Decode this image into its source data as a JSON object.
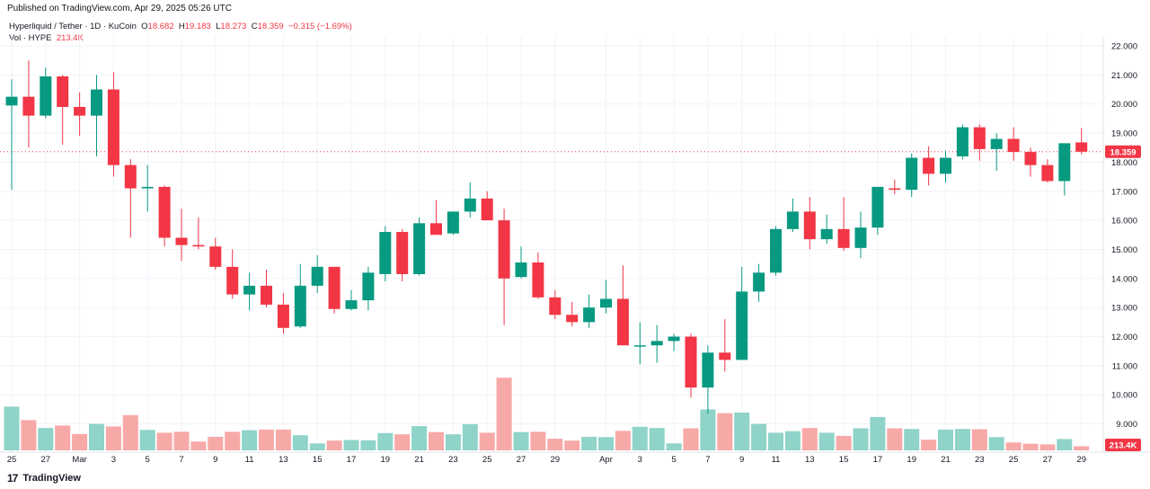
{
  "header": {
    "published": "Published on TradingView.com, Apr 29, 2025 05:26 UTC"
  },
  "legend": {
    "symbol": "Hyperliquid / Tether · 1D · KuCoin",
    "open_label": "O",
    "open": "18.682",
    "high_label": "H",
    "high": "19.183",
    "low_label": "L",
    "low": "18.273",
    "close_label": "C",
    "close": "18.359",
    "change": "−0.315 (−1.69%)",
    "vol_label": "Vol · HYPE",
    "vol_value": "213.4K"
  },
  "footer": {
    "brand": "TradingView",
    "logo_mark": "17"
  },
  "colors": {
    "up": "#089981",
    "down": "#f23645",
    "vol_up": "#8fd3c9",
    "vol_down": "#f7a9a7",
    "grid": "#f0f3fa",
    "text": "#131722"
  },
  "chart_data": {
    "type": "candlestick",
    "ylim": [
      8.0,
      22.5
    ],
    "y_ticks": [
      "9.000",
      "10.000",
      "11.000",
      "12.000",
      "13.000",
      "14.000",
      "15.000",
      "16.000",
      "17.000",
      "18.000",
      "19.000",
      "20.000",
      "21.000",
      "22.000"
    ],
    "last_price_label": "18.359",
    "last_volume_label": "213.4K",
    "x_tick_labels": [
      {
        "i": 0,
        "label": "25"
      },
      {
        "i": 2,
        "label": "27"
      },
      {
        "i": 4,
        "label": "Mar"
      },
      {
        "i": 6,
        "label": "3"
      },
      {
        "i": 8,
        "label": "5"
      },
      {
        "i": 10,
        "label": "7"
      },
      {
        "i": 12,
        "label": "9"
      },
      {
        "i": 14,
        "label": "11"
      },
      {
        "i": 16,
        "label": "13"
      },
      {
        "i": 18,
        "label": "15"
      },
      {
        "i": 20,
        "label": "17"
      },
      {
        "i": 22,
        "label": "19"
      },
      {
        "i": 24,
        "label": "21"
      },
      {
        "i": 26,
        "label": "23"
      },
      {
        "i": 28,
        "label": "25"
      },
      {
        "i": 30,
        "label": "27"
      },
      {
        "i": 32,
        "label": "29"
      },
      {
        "i": 35,
        "label": "Apr"
      },
      {
        "i": 37,
        "label": "3"
      },
      {
        "i": 39,
        "label": "5"
      },
      {
        "i": 41,
        "label": "7"
      },
      {
        "i": 43,
        "label": "9"
      },
      {
        "i": 45,
        "label": "11"
      },
      {
        "i": 47,
        "label": "13"
      },
      {
        "i": 49,
        "label": "15"
      },
      {
        "i": 51,
        "label": "17"
      },
      {
        "i": 53,
        "label": "19"
      },
      {
        "i": 55,
        "label": "21"
      },
      {
        "i": 57,
        "label": "23"
      },
      {
        "i": 59,
        "label": "25"
      },
      {
        "i": 61,
        "label": "27"
      },
      {
        "i": 63,
        "label": "29"
      }
    ],
    "candles": [
      {
        "o": 19.95,
        "h": 20.85,
        "l": 17.05,
        "c": 20.25
      },
      {
        "o": 20.25,
        "h": 21.5,
        "l": 18.5,
        "c": 19.6
      },
      {
        "o": 19.6,
        "h": 21.25,
        "l": 19.5,
        "c": 20.95
      },
      {
        "o": 20.95,
        "h": 21.0,
        "l": 18.6,
        "c": 19.9
      },
      {
        "o": 19.9,
        "h": 20.4,
        "l": 18.9,
        "c": 19.6
      },
      {
        "o": 19.6,
        "h": 21.0,
        "l": 18.2,
        "c": 20.5
      },
      {
        "o": 20.5,
        "h": 21.1,
        "l": 17.5,
        "c": 17.9
      },
      {
        "o": 17.9,
        "h": 18.1,
        "l": 15.4,
        "c": 17.1
      },
      {
        "o": 17.1,
        "h": 17.9,
        "l": 16.3,
        "c": 17.15
      },
      {
        "o": 17.15,
        "h": 17.2,
        "l": 15.1,
        "c": 15.4
      },
      {
        "o": 15.4,
        "h": 16.4,
        "l": 14.6,
        "c": 15.15
      },
      {
        "o": 15.15,
        "h": 16.1,
        "l": 15.0,
        "c": 15.1
      },
      {
        "o": 15.1,
        "h": 15.4,
        "l": 14.3,
        "c": 14.4
      },
      {
        "o": 14.4,
        "h": 15.0,
        "l": 13.3,
        "c": 13.45
      },
      {
        "o": 13.45,
        "h": 14.2,
        "l": 12.9,
        "c": 13.75
      },
      {
        "o": 13.75,
        "h": 14.3,
        "l": 13.0,
        "c": 13.1
      },
      {
        "o": 13.1,
        "h": 13.5,
        "l": 12.1,
        "c": 12.3
      },
      {
        "o": 12.35,
        "h": 14.5,
        "l": 12.3,
        "c": 13.75
      },
      {
        "o": 13.75,
        "h": 14.8,
        "l": 13.5,
        "c": 14.4
      },
      {
        "o": 14.4,
        "h": 14.4,
        "l": 12.8,
        "c": 12.95
      },
      {
        "o": 12.95,
        "h": 13.6,
        "l": 12.9,
        "c": 13.25
      },
      {
        "o": 13.25,
        "h": 14.4,
        "l": 12.9,
        "c": 14.2
      },
      {
        "o": 14.15,
        "h": 15.8,
        "l": 13.9,
        "c": 15.6
      },
      {
        "o": 15.6,
        "h": 15.7,
        "l": 13.9,
        "c": 14.15
      },
      {
        "o": 14.15,
        "h": 16.1,
        "l": 14.1,
        "c": 15.9
      },
      {
        "o": 15.9,
        "h": 16.7,
        "l": 15.5,
        "c": 15.5
      },
      {
        "o": 15.55,
        "h": 16.3,
        "l": 15.5,
        "c": 16.3
      },
      {
        "o": 16.3,
        "h": 17.3,
        "l": 16.1,
        "c": 16.75
      },
      {
        "o": 16.75,
        "h": 17.0,
        "l": 16.0,
        "c": 16.0
      },
      {
        "o": 16.0,
        "h": 16.4,
        "l": 12.4,
        "c": 14.0
      },
      {
        "o": 14.05,
        "h": 15.1,
        "l": 14.0,
        "c": 14.55
      },
      {
        "o": 14.55,
        "h": 14.9,
        "l": 13.3,
        "c": 13.35
      },
      {
        "o": 13.35,
        "h": 13.6,
        "l": 12.6,
        "c": 12.75
      },
      {
        "o": 12.75,
        "h": 13.2,
        "l": 12.35,
        "c": 12.5
      },
      {
        "o": 12.5,
        "h": 13.45,
        "l": 12.3,
        "c": 13.0
      },
      {
        "o": 13.0,
        "h": 13.95,
        "l": 12.8,
        "c": 13.3
      },
      {
        "o": 13.3,
        "h": 14.45,
        "l": 11.7,
        "c": 11.7
      },
      {
        "o": 11.7,
        "h": 12.5,
        "l": 11.05,
        "c": 11.7
      },
      {
        "o": 11.7,
        "h": 12.4,
        "l": 11.1,
        "c": 11.85
      },
      {
        "o": 11.85,
        "h": 12.1,
        "l": 11.5,
        "c": 12.0
      },
      {
        "o": 12.0,
        "h": 12.1,
        "l": 9.9,
        "c": 10.25
      },
      {
        "o": 10.25,
        "h": 11.7,
        "l": 9.35,
        "c": 11.45
      },
      {
        "o": 11.45,
        "h": 12.6,
        "l": 10.8,
        "c": 11.2
      },
      {
        "o": 11.2,
        "h": 14.4,
        "l": 11.2,
        "c": 13.55
      },
      {
        "o": 13.55,
        "h": 14.5,
        "l": 13.2,
        "c": 14.2
      },
      {
        "o": 14.2,
        "h": 15.8,
        "l": 14.1,
        "c": 15.7
      },
      {
        "o": 15.7,
        "h": 16.75,
        "l": 15.6,
        "c": 16.3
      },
      {
        "o": 16.3,
        "h": 16.8,
        "l": 15.0,
        "c": 15.35
      },
      {
        "o": 15.35,
        "h": 16.2,
        "l": 15.2,
        "c": 15.7
      },
      {
        "o": 15.7,
        "h": 16.8,
        "l": 14.95,
        "c": 15.05
      },
      {
        "o": 15.05,
        "h": 16.3,
        "l": 14.7,
        "c": 15.75
      },
      {
        "o": 15.75,
        "h": 17.1,
        "l": 15.5,
        "c": 17.15
      },
      {
        "o": 17.1,
        "h": 17.4,
        "l": 16.9,
        "c": 17.05
      },
      {
        "o": 17.05,
        "h": 18.3,
        "l": 16.8,
        "c": 18.15
      },
      {
        "o": 18.15,
        "h": 18.55,
        "l": 17.2,
        "c": 17.6
      },
      {
        "o": 17.6,
        "h": 18.4,
        "l": 17.3,
        "c": 18.15
      },
      {
        "o": 18.2,
        "h": 19.3,
        "l": 18.1,
        "c": 19.2
      },
      {
        "o": 19.2,
        "h": 19.3,
        "l": 18.05,
        "c": 18.45
      },
      {
        "o": 18.45,
        "h": 19.0,
        "l": 17.7,
        "c": 18.8
      },
      {
        "o": 18.8,
        "h": 19.2,
        "l": 18.05,
        "c": 18.35
      },
      {
        "o": 18.35,
        "h": 18.5,
        "l": 17.5,
        "c": 17.9
      },
      {
        "o": 17.9,
        "h": 18.1,
        "l": 17.3,
        "c": 17.35
      },
      {
        "o": 17.35,
        "h": 18.6,
        "l": 16.85,
        "c": 18.65
      },
      {
        "o": 18.68,
        "h": 19.18,
        "l": 18.27,
        "c": 18.36
      }
    ],
    "volume_max": 10000,
    "volumes": [
      6950,
      4800,
      3550,
      3950,
      2600,
      4200,
      3800,
      5600,
      3250,
      2800,
      2950,
      1400,
      2150,
      2950,
      3200,
      3300,
      3300,
      2400,
      1100,
      1550,
      1650,
      1600,
      2750,
      2550,
      3850,
      2900,
      2550,
      4150,
      2800,
      11550,
      2900,
      2950,
      1850,
      1550,
      2150,
      2100,
      3100,
      3750,
      3550,
      1100,
      3500,
      6500,
      5900,
      6000,
      4200,
      2800,
      3050,
      3550,
      2800,
      2300,
      3500,
      5300,
      3500,
      3400,
      1700,
      3300,
      3400,
      3350,
      2100,
      1250,
      1050,
      950,
      1800,
      650
    ]
  }
}
